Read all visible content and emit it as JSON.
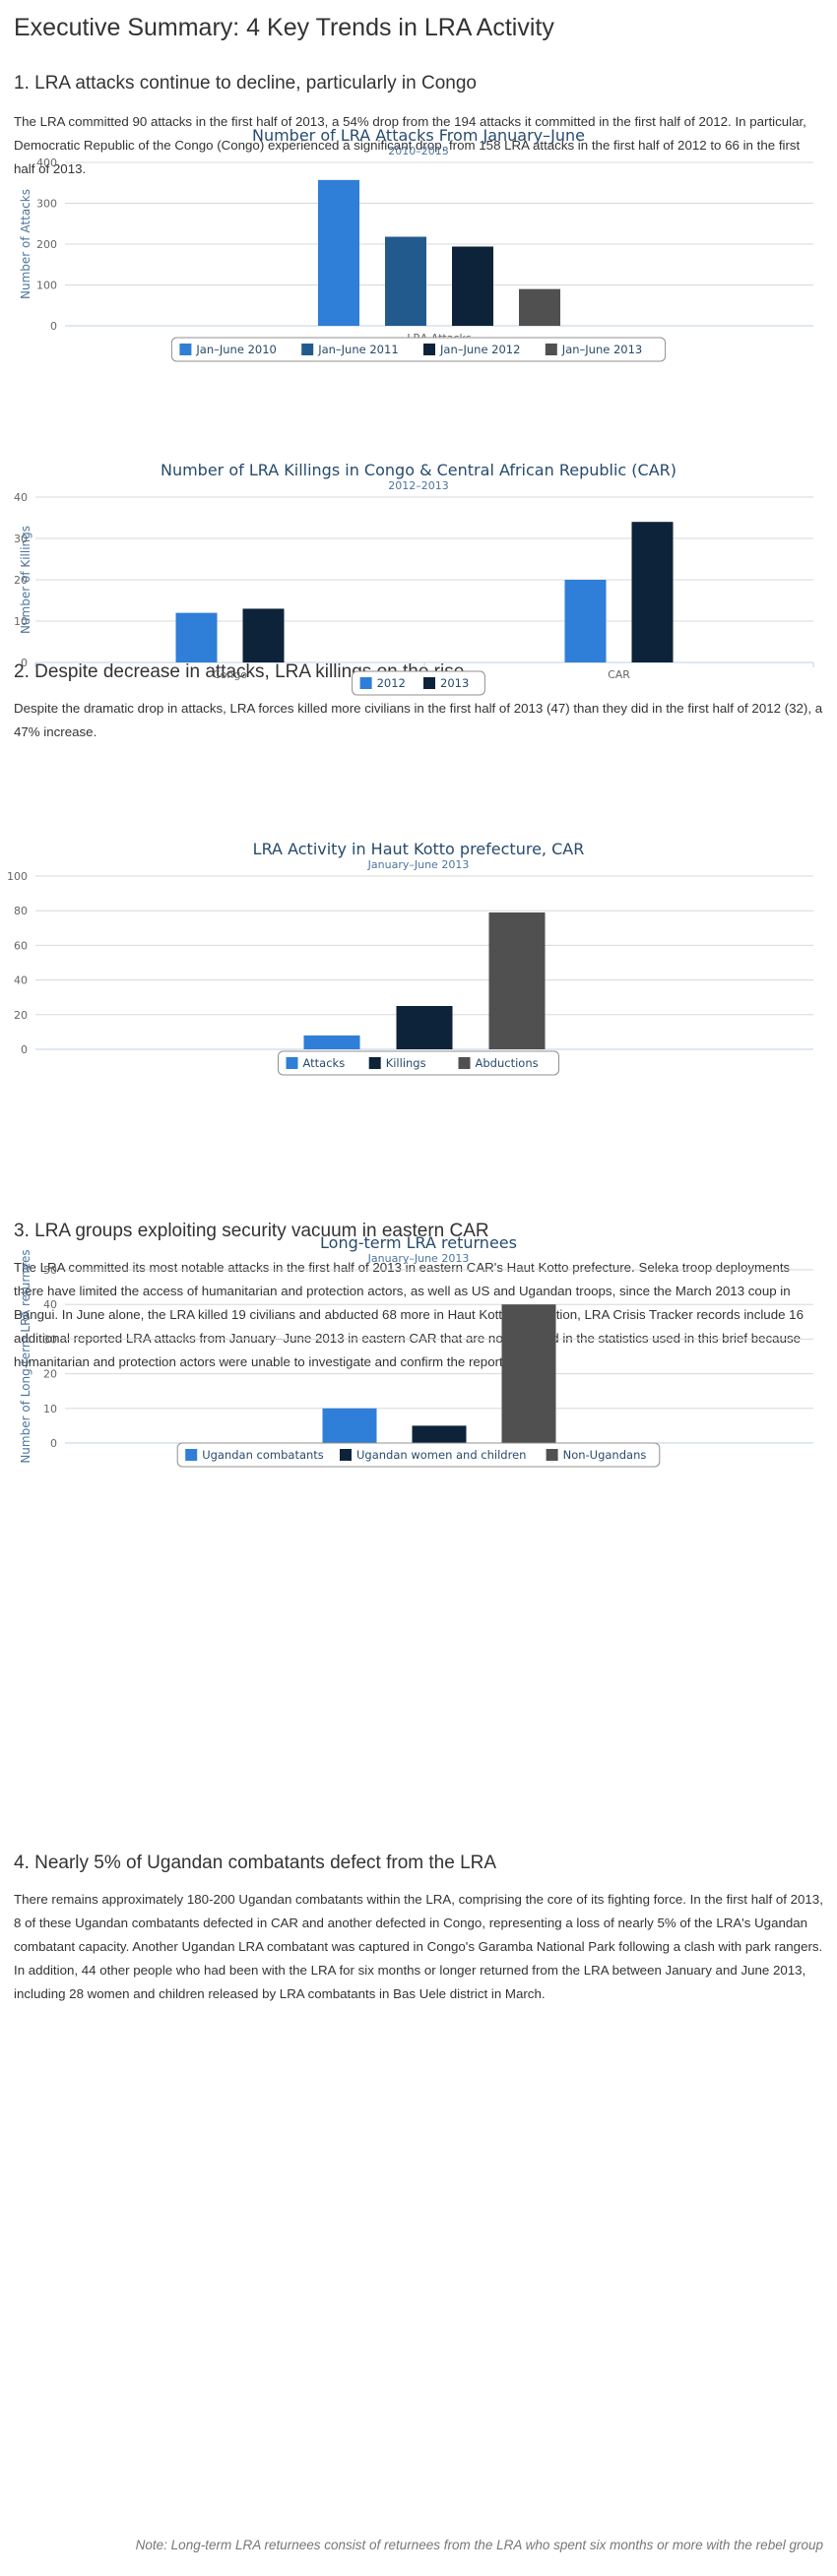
{
  "page": {
    "title": "Executive Summary: 4 Key Trends in LRA Activity"
  },
  "sections": [
    {
      "heading": "1. LRA attacks continue to decline, particularly in Congo",
      "body": "The LRA committed 90 attacks in the first half of 2013, a 54% drop from the 194 attacks it committed in the first half of 2012. In particular, Democratic Republic of the Congo (Congo) experienced a significant drop, from 158 LRA attacks in the first half of 2012 to 66 in the first half of 2013."
    },
    {
      "heading": "2. Despite decrease in attacks, LRA killings on the rise",
      "body": "Despite the dramatic drop in attacks, LRA forces killed more civilians in the first half of 2013 (47) than they did in the first half of 2012 (32), a 47% increase."
    },
    {
      "heading": "3. LRA groups exploiting security vacuum in eastern CAR",
      "body": "The LRA committed its most notable attacks in the first half of 2013 in eastern CAR's Haut Kotto prefecture. Seleka troop deployments there have limited the access of humanitarian and protection actors, as well as US and Ugandan troops, since the March 2013 coup in Bangui. In June alone, the LRA killed 19 civilians and abducted 68 more in Haut Kotto. In addition, LRA Crisis Tracker records include 16 additional reported LRA attacks from January–June 2013 in eastern CAR that are not included in the statistics used in this brief because humanitarian and protection actors were unable to investigate and confirm the reports."
    },
    {
      "heading": "4. Nearly 5% of Ugandan combatants defect from the LRA",
      "body": "There remains approximately 180-200 Ugandan combatants within the LRA, comprising the core of its fighting force. In the first half of 2013, 8 of these Ugandan combatants defected in CAR and another defected in Congo, representing a loss of nearly 5% of the LRA's Ugandan combatant capacity. Another Ugandan LRA combatant was captured in Congo's Garamba National Park following a clash with park rangers. In addition, 44 other people who had been with the LRA for six months or longer returned from the LRA between January and June 2013, including 28 women and children released by LRA combatants in Bas Uele district in March."
    }
  ],
  "note": "Note: Long-term LRA returnees consist of returnees from the LRA who spent six months or more with the rebel group",
  "chart_data": [
    {
      "type": "bar",
      "title": "Number of LRA Attacks From January–June",
      "subtitle": "2010–2013",
      "xlabel": "",
      "ylabel": "Number of Attacks",
      "categories": [
        "LRA Attacks"
      ],
      "ylim": [
        0,
        400
      ],
      "yticks": [
        0,
        100,
        200,
        300,
        400
      ],
      "grid": true,
      "legend": "bottom-center",
      "series": [
        {
          "name": "Jan–June 2010",
          "color": "#2f7ed8",
          "values": [
            357
          ]
        },
        {
          "name": "Jan–June 2011",
          "color": "#235a8e",
          "values": [
            218
          ]
        },
        {
          "name": "Jan–June 2012",
          "color": "#0d233a",
          "values": [
            194
          ]
        },
        {
          "name": "Jan–June 2013",
          "color": "#505050",
          "values": [
            90
          ]
        }
      ]
    },
    {
      "type": "bar",
      "title": "Number of LRA Killings in Congo & Central African Republic (CAR)",
      "subtitle": "2012–2013",
      "xlabel": "",
      "ylabel": "Number of Killings",
      "categories": [
        "Congo",
        "CAR"
      ],
      "ylim": [
        0,
        40
      ],
      "yticks": [
        0,
        10,
        20,
        30,
        40
      ],
      "grid": true,
      "legend": "bottom-center",
      "series": [
        {
          "name": "2012",
          "color": "#2f7ed8",
          "values": [
            12,
            20
          ]
        },
        {
          "name": "2013",
          "color": "#0d233a",
          "values": [
            13,
            34
          ]
        }
      ]
    },
    {
      "type": "bar",
      "title": "LRA Activity in Haut Kotto prefecture, CAR",
      "subtitle": "January–June 2013",
      "xlabel": "",
      "ylabel": "",
      "categories": [
        ""
      ],
      "ylim": [
        0,
        100
      ],
      "yticks": [
        0,
        20,
        40,
        60,
        80,
        100
      ],
      "grid": true,
      "legend": "bottom-center",
      "series": [
        {
          "name": "Attacks",
          "color": "#2f7ed8",
          "values": [
            8
          ]
        },
        {
          "name": "Killings",
          "color": "#0d233a",
          "values": [
            25
          ]
        },
        {
          "name": "Abductions",
          "color": "#505050",
          "values": [
            79
          ]
        }
      ]
    },
    {
      "type": "bar",
      "title": "Long-term LRA returnees",
      "subtitle": "January–June 2013",
      "xlabel": "",
      "ylabel": "Number of Long-term LRA returnees",
      "categories": [
        ""
      ],
      "ylim": [
        0,
        50
      ],
      "yticks": [
        0,
        10,
        20,
        30,
        40,
        50
      ],
      "grid": true,
      "legend": "bottom-center",
      "series": [
        {
          "name": "Ugandan combatants",
          "color": "#2f7ed8",
          "values": [
            10
          ]
        },
        {
          "name": "Ugandan women and children",
          "color": "#0d233a",
          "values": [
            5
          ]
        },
        {
          "name": "Non-Ugandans",
          "color": "#505050",
          "values": [
            40
          ]
        }
      ]
    }
  ]
}
